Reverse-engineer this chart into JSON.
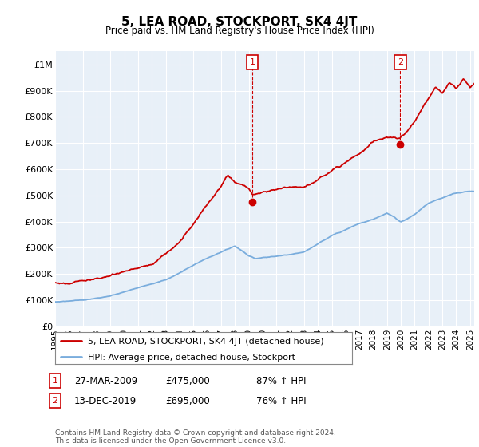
{
  "title": "5, LEA ROAD, STOCKPORT, SK4 4JT",
  "subtitle": "Price paid vs. HM Land Registry's House Price Index (HPI)",
  "hpi_label": "HPI: Average price, detached house, Stockport",
  "price_label": "5, LEA ROAD, STOCKPORT, SK4 4JT (detached house)",
  "footnote": "Contains HM Land Registry data © Crown copyright and database right 2024.\nThis data is licensed under the Open Government Licence v3.0.",
  "annotation1": {
    "num": "1",
    "date": "27-MAR-2009",
    "price": "£475,000",
    "pct": "87% ↑ HPI"
  },
  "annotation2": {
    "num": "2",
    "date": "13-DEC-2019",
    "price": "£695,000",
    "pct": "76% ↑ HPI"
  },
  "price_color": "#cc0000",
  "hpi_color": "#7aaddd",
  "background_color": "#ffffff",
  "chart_bg_color": "#e8f0f8",
  "grid_color": "#ffffff",
  "ylim": [
    0,
    1050000
  ],
  "yticks": [
    0,
    100000,
    200000,
    300000,
    400000,
    500000,
    600000,
    700000,
    800000,
    900000,
    1000000
  ],
  "ytick_labels": [
    "£0",
    "£100K",
    "£200K",
    "£300K",
    "£400K",
    "£500K",
    "£600K",
    "£700K",
    "£800K",
    "£900K",
    "£1M"
  ],
  "xlim_start": 1995.0,
  "xlim_end": 2025.3,
  "xtick_years": [
    1995,
    1996,
    1997,
    1998,
    1999,
    2000,
    2001,
    2002,
    2003,
    2004,
    2005,
    2006,
    2007,
    2008,
    2009,
    2010,
    2011,
    2012,
    2013,
    2014,
    2015,
    2016,
    2017,
    2018,
    2019,
    2020,
    2021,
    2022,
    2023,
    2024,
    2025
  ],
  "ann1_x": 2009.25,
  "ann1_y": 475000,
  "ann2_x": 2019.95,
  "ann2_y": 695000,
  "hpi_anchors_x": [
    1995,
    1997,
    1999,
    2001,
    2003,
    2004,
    2005,
    2006,
    2007,
    2008,
    2009,
    2009.5,
    2010,
    2011,
    2012,
    2013,
    2014,
    2015,
    2016,
    2017,
    2018,
    2019,
    2019.5,
    2020,
    2021,
    2022,
    2023,
    2024,
    2025.3
  ],
  "hpi_anchors_y": [
    93000,
    102000,
    115000,
    145000,
    175000,
    200000,
    230000,
    255000,
    275000,
    300000,
    260000,
    250000,
    255000,
    260000,
    265000,
    275000,
    305000,
    335000,
    360000,
    385000,
    400000,
    425000,
    410000,
    390000,
    420000,
    460000,
    480000,
    498000,
    505000
  ],
  "price_anchors_x": [
    1995,
    1996,
    1997,
    1998,
    1999,
    2000,
    2001,
    2002,
    2003,
    2004,
    2005,
    2006,
    2007,
    2007.5,
    2008,
    2009.0,
    2009.25,
    2010,
    2011,
    2012,
    2013,
    2014,
    2015,
    2016,
    2017,
    2018,
    2019,
    2019.95,
    2020.3,
    2021,
    2021.5,
    2022,
    2022.5,
    2023,
    2023.5,
    2024,
    2024.5,
    2025.0,
    2025.3
  ],
  "price_anchors_y": [
    165000,
    165000,
    180000,
    185000,
    190000,
    205000,
    215000,
    230000,
    270000,
    310000,
    380000,
    450000,
    510000,
    555000,
    530000,
    500000,
    475000,
    490000,
    500000,
    505000,
    505000,
    530000,
    560000,
    600000,
    635000,
    680000,
    700000,
    695000,
    715000,
    760000,
    800000,
    840000,
    880000,
    860000,
    895000,
    875000,
    910000,
    875000,
    895000
  ]
}
